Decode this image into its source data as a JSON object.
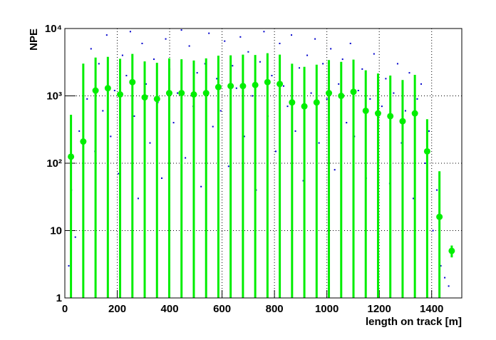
{
  "chart_data": {
    "type": "scatter-profile",
    "x_label": "length on track [m]",
    "y_label": "NPE",
    "xlim": [
      0,
      1515
    ],
    "ylim": [
      1,
      10000
    ],
    "log_y": true,
    "grid": true,
    "xticks": [
      0,
      200,
      400,
      600,
      800,
      1000,
      1200,
      1400
    ],
    "yticks": [
      1,
      10,
      {
        "value": 100,
        "label": "10²"
      },
      {
        "value": 1000,
        "label": "10³"
      },
      {
        "value": 10000,
        "label": "10⁴"
      }
    ],
    "series": [
      {
        "kind": "points",
        "color": "#0000cc",
        "x": [
          15,
          25,
          40,
          55,
          70,
          85,
          100,
          115,
          130,
          145,
          160,
          175,
          190,
          205,
          220,
          235,
          250,
          265,
          280,
          295,
          310,
          325,
          340,
          355,
          370,
          385,
          400,
          415,
          430,
          445,
          460,
          475,
          490,
          505,
          520,
          535,
          550,
          565,
          580,
          595,
          610,
          625,
          640,
          655,
          670,
          685,
          700,
          715,
          730,
          745,
          760,
          775,
          790,
          805,
          820,
          835,
          850,
          865,
          880,
          895,
          910,
          925,
          940,
          955,
          970,
          985,
          1000,
          1015,
          1030,
          1045,
          1060,
          1075,
          1090,
          1105,
          1120,
          1135,
          1150,
          1165,
          1180,
          1195,
          1210,
          1225,
          1240,
          1255,
          1270,
          1285,
          1300,
          1315,
          1330,
          1345,
          1360,
          1375,
          1390,
          1405,
          1420,
          1435,
          1450,
          1465
        ],
        "values": [
          3,
          40,
          8,
          300,
          2,
          900,
          5000,
          150,
          3000,
          600,
          8000,
          250,
          1200,
          70,
          4000,
          2000,
          9000,
          500,
          30,
          6000,
          1500,
          200,
          3500,
          800,
          60,
          7000,
          2500,
          400,
          1100,
          9500,
          120,
          5500,
          700,
          2200,
          45,
          3000,
          8500,
          350,
          1800,
          600,
          6500,
          90,
          2800,
          1300,
          7500,
          250,
          4500,
          1000,
          40,
          3200,
          9000,
          500,
          2000,
          150,
          6000,
          1400,
          700,
          8000,
          300,
          2600,
          55,
          4000,
          1100,
          7000,
          200,
          3000,
          900,
          5000,
          80,
          1500,
          3500,
          400,
          6000,
          250,
          1200,
          2500,
          60,
          900,
          4200,
          300,
          700,
          1800,
          50,
          1100,
          3000,
          200,
          600,
          2200,
          30,
          900,
          1500,
          100,
          300,
          10,
          40,
          3,
          2,
          1.5
        ]
      },
      {
        "kind": "profile",
        "color": "#00ee00",
        "x": [
          23.4,
          70.3,
          117.2,
          164.1,
          210.9,
          257.8,
          304.7,
          351.6,
          398.4,
          445.3,
          492.2,
          539.1,
          585.9,
          632.8,
          679.7,
          726.6,
          773.4,
          820.3,
          867.2,
          914.1,
          960.9,
          1007.8,
          1054.7,
          1101.6,
          1148.4,
          1195.3,
          1242.2,
          1289.1,
          1335.9,
          1382.8,
          1429.7,
          1476.6
        ],
        "values": [
          125,
          210,
          1200,
          1300,
          1050,
          1600,
          950,
          900,
          1100,
          1100,
          1050,
          1100,
          1350,
          1400,
          1400,
          1450,
          1600,
          1500,
          800,
          700,
          800,
          1100,
          1000,
          1150,
          600,
          550,
          500,
          420,
          550,
          150,
          16,
          5
        ],
        "errors": [
          400,
          2800,
          2500,
          2500,
          2500,
          2600,
          2300,
          2200,
          2500,
          2400,
          2300,
          2500,
          2600,
          2600,
          2700,
          2600,
          2700,
          2600,
          2200,
          2000,
          2100,
          2300,
          2200,
          2300,
          1800,
          1600,
          1500,
          1300,
          1500,
          300,
          60,
          1
        ]
      }
    ]
  }
}
